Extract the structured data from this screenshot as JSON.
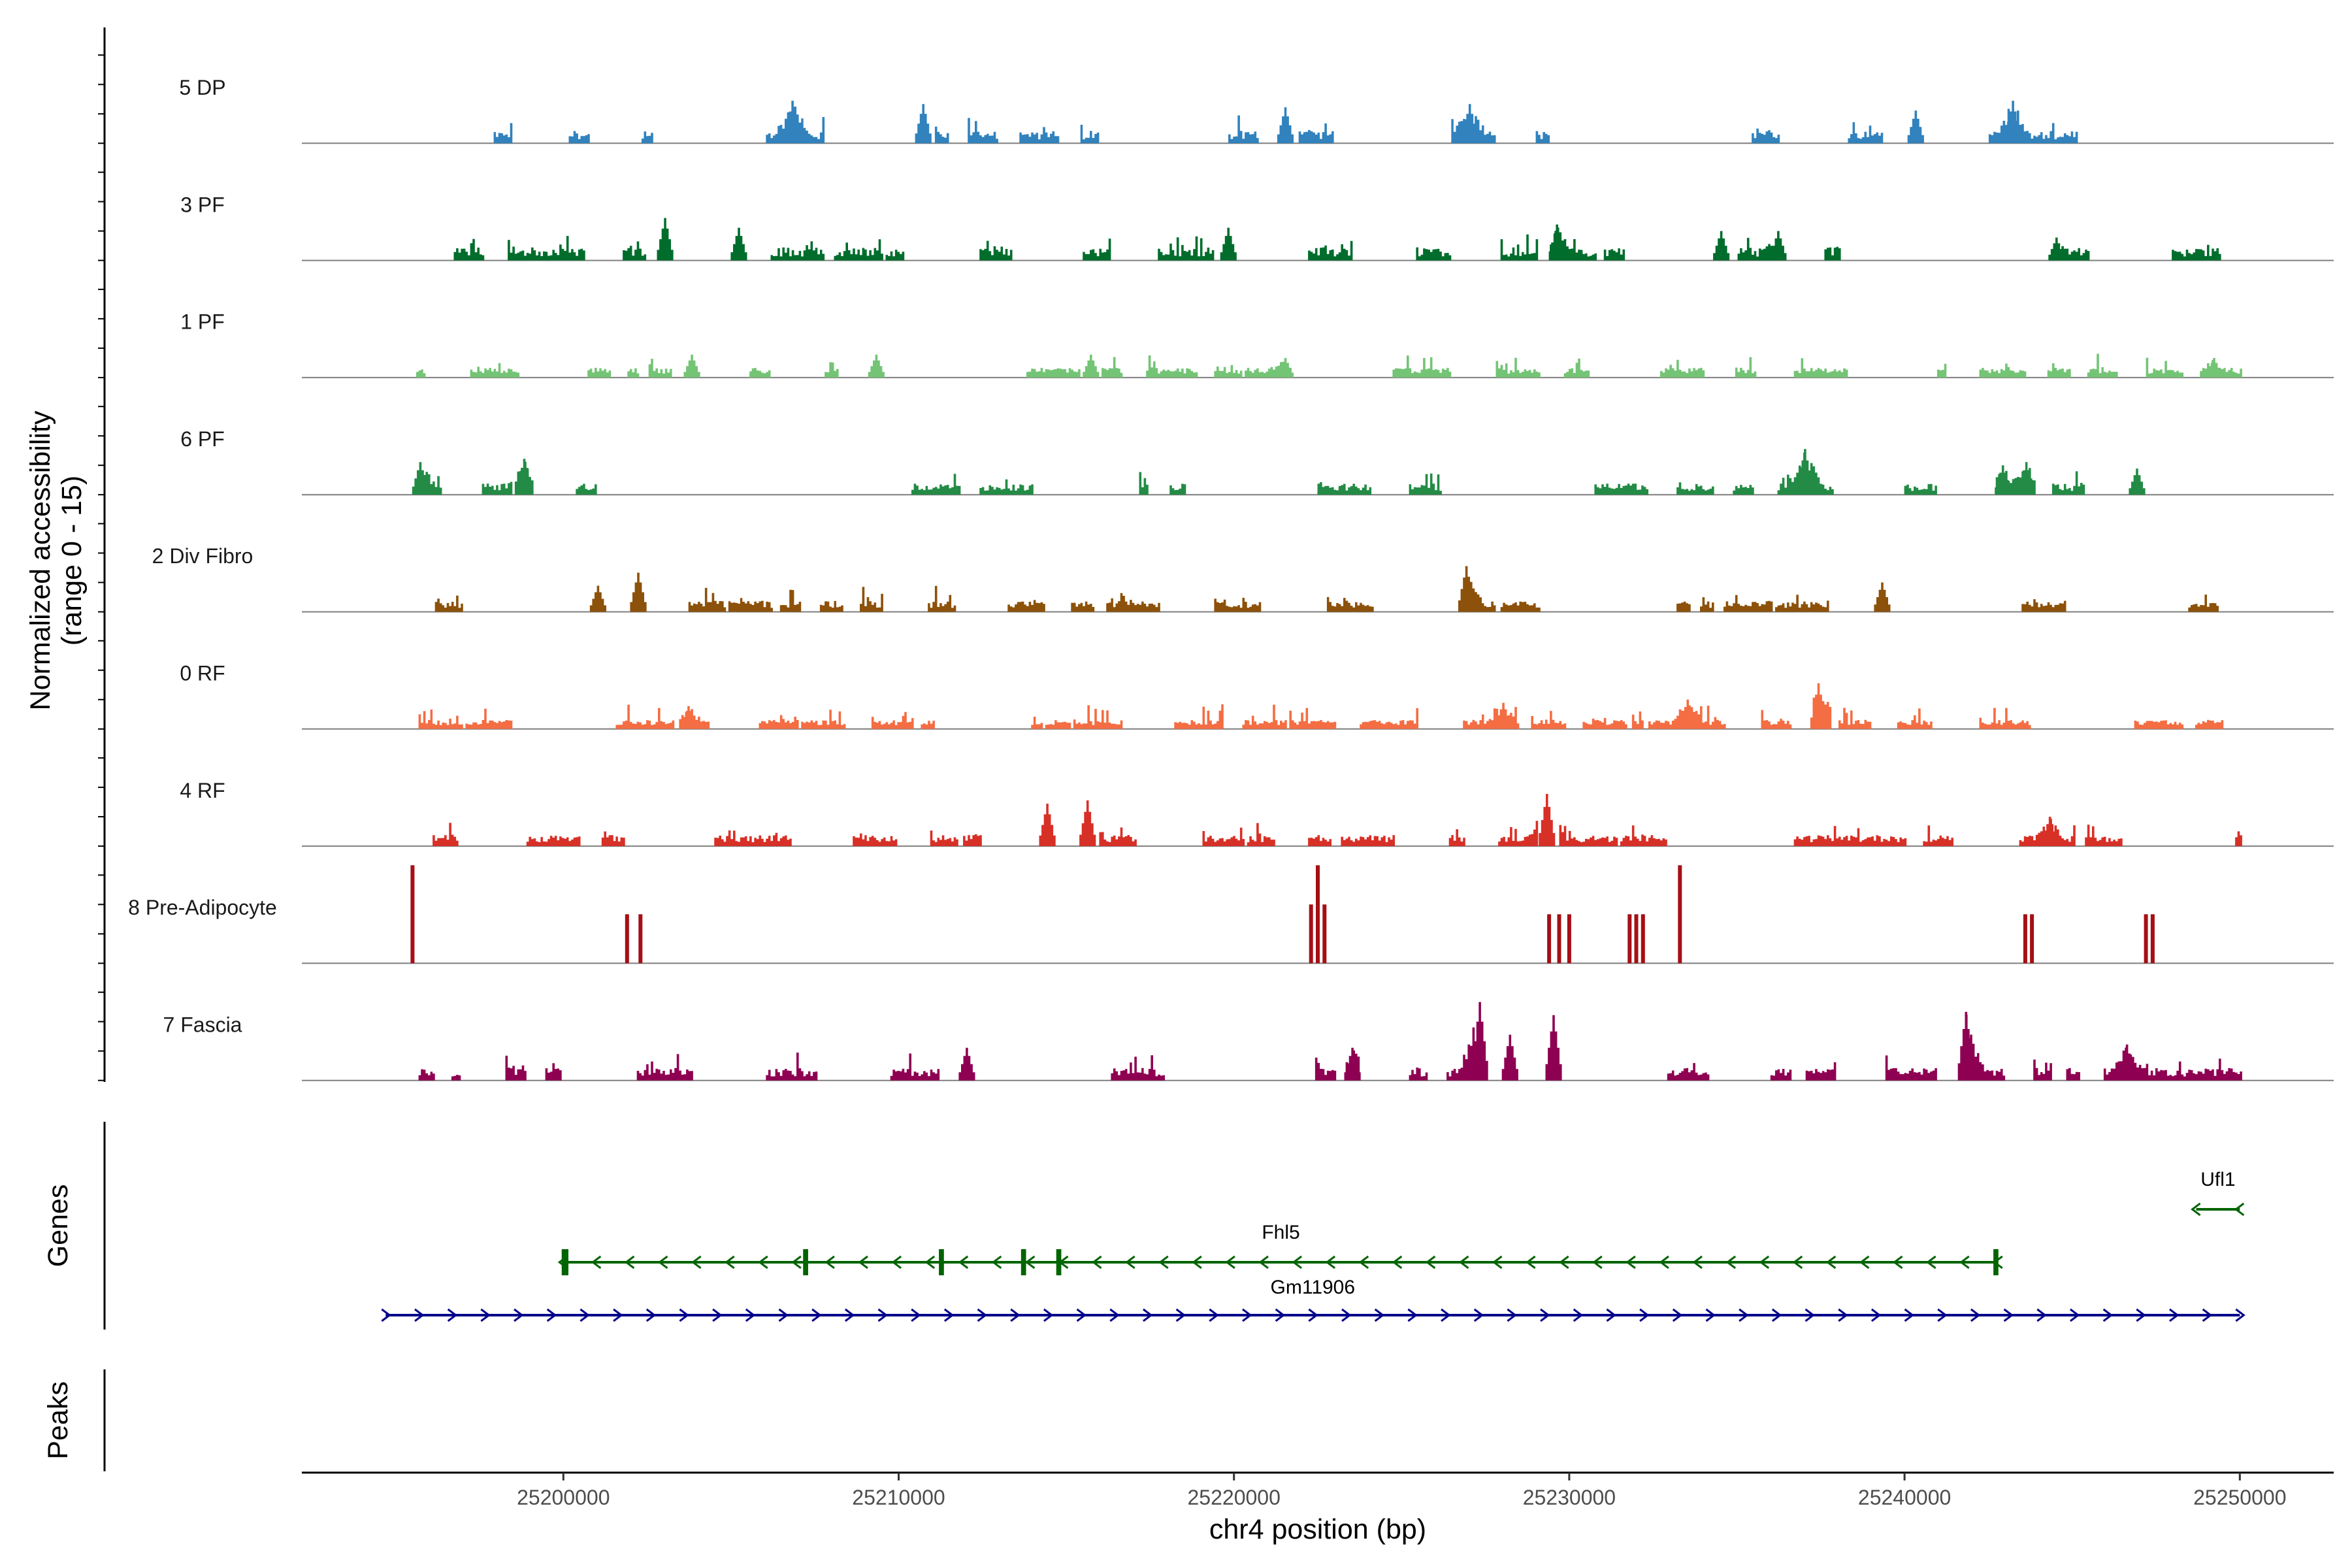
{
  "chart_data": {
    "type": "coverage",
    "track_ylabel_line1": "Normalized accessibility",
    "track_ylabel_line2": "(range 0 - 15)",
    "ylim": [
      0,
      15
    ],
    "xlabel": "chr4 position (bp)",
    "xlim": [
      25192200,
      25252800
    ],
    "data_range": [
      25195400,
      25250000
    ],
    "x_ticks": [
      25200000,
      25210000,
      25220000,
      25230000,
      25240000,
      25250000
    ],
    "tracks": [
      {
        "name": "5 DP",
        "color": "#3182bd",
        "seed": 11,
        "density": 0.42,
        "peakiness": 0.65,
        "hotspots": [
          [
            25206800,
            6.5
          ],
          [
            25210700,
            6.0
          ],
          [
            25221500,
            5.5
          ],
          [
            25227000,
            6.0
          ],
          [
            25243200,
            6.5
          ],
          [
            25240300,
            5.0
          ]
        ]
      },
      {
        "name": "3 PF",
        "color": "#006d2c",
        "seed": 23,
        "density": 0.55,
        "peakiness": 0.7,
        "hotspots": [
          [
            25203000,
            6.5
          ],
          [
            25205200,
            5.0
          ],
          [
            25219800,
            5.0
          ],
          [
            25229600,
            5.5
          ],
          [
            25234500,
            4.5
          ],
          [
            25236200,
            4.5
          ],
          [
            25244500,
            3.5
          ]
        ]
      },
      {
        "name": "1 PF",
        "color": "#74c476",
        "seed": 37,
        "density": 0.55,
        "peakiness": 0.45,
        "hotspots": [
          [
            25203800,
            3.5
          ],
          [
            25209300,
            3.5
          ],
          [
            25215700,
            3.5
          ],
          [
            25221500,
            3.0
          ],
          [
            25249200,
            3.0
          ]
        ]
      },
      {
        "name": "6 PF",
        "color": "#238b45",
        "seed": 41,
        "density": 0.32,
        "peakiness": 0.55,
        "hotspots": [
          [
            25195700,
            5.0
          ],
          [
            25198800,
            5.5
          ],
          [
            25237000,
            7.0
          ],
          [
            25242900,
            4.5
          ],
          [
            25243600,
            5.0
          ],
          [
            25246900,
            4.0
          ]
        ]
      },
      {
        "name": "2 Div Fibro",
        "color": "#8c510a",
        "seed": 53,
        "density": 0.5,
        "peakiness": 0.55,
        "hotspots": [
          [
            25202200,
            6.0
          ],
          [
            25226900,
            7.0
          ],
          [
            25239300,
            4.5
          ],
          [
            25201000,
            4.0
          ]
        ]
      },
      {
        "name": "0 RF",
        "color": "#f46d43",
        "seed": 67,
        "density": 0.65,
        "peakiness": 0.4,
        "hotspots": [
          [
            25237400,
            7.0
          ],
          [
            25233500,
            4.5
          ],
          [
            25228000,
            4.0
          ],
          [
            25203700,
            3.5
          ]
        ]
      },
      {
        "name": "4 RF",
        "color": "#d73027",
        "seed": 71,
        "density": 0.5,
        "peakiness": 0.55,
        "hotspots": [
          [
            25214400,
            6.5
          ],
          [
            25215600,
            7.0
          ],
          [
            25229300,
            8.0
          ],
          [
            25244300,
            4.5
          ]
        ]
      },
      {
        "name": "8 Pre-Adipocyte",
        "color": "#a50f15",
        "seed": 83,
        "density": 0.0,
        "peakiness": 1.0,
        "hotspots": [],
        "sparse": [
          [
            25195500,
            15.0
          ],
          [
            25201900,
            7.5
          ],
          [
            25202300,
            7.5
          ],
          [
            25222300,
            9.0
          ],
          [
            25222500,
            15.0
          ],
          [
            25222700,
            9.0
          ],
          [
            25229400,
            7.5
          ],
          [
            25229700,
            7.5
          ],
          [
            25230000,
            7.5
          ],
          [
            25231800,
            7.5
          ],
          [
            25232000,
            7.5
          ],
          [
            25232200,
            7.5
          ],
          [
            25233300,
            15.0
          ],
          [
            25243600,
            7.5
          ],
          [
            25243800,
            7.5
          ],
          [
            25247200,
            7.5
          ],
          [
            25247400,
            7.5
          ]
        ]
      },
      {
        "name": "7 Fascia",
        "color": "#8e0152",
        "seed": 97,
        "density": 0.55,
        "peakiness": 0.65,
        "hotspots": [
          [
            25227300,
            12.0
          ],
          [
            25229500,
            10.0
          ],
          [
            25241800,
            10.5
          ],
          [
            25228200,
            7.0
          ],
          [
            25212000,
            5.0
          ],
          [
            25246600,
            5.5
          ],
          [
            25223500,
            5.0
          ]
        ]
      }
    ],
    "genes_panel_label": "Genes",
    "peaks_panel_label": "Peaks",
    "genes": [
      {
        "name": "Fhl5",
        "strand": "-",
        "start": 25200000,
        "end": 25242800,
        "color": "#006400",
        "exons": [
          [
            25199950,
            25200150
          ],
          [
            25207150,
            25207300
          ],
          [
            25211200,
            25211350
          ],
          [
            25213650,
            25213800
          ],
          [
            25214700,
            25214850
          ],
          [
            25242650,
            25242800
          ]
        ]
      },
      {
        "name": "Gm11906",
        "strand": "+",
        "start": 25194700,
        "end": 25250000,
        "color": "#00008b",
        "exons": []
      },
      {
        "name": "Ufl1",
        "strand": "-",
        "start": 25248700,
        "end": 25250000,
        "color": "#006400",
        "exons": []
      }
    ]
  }
}
